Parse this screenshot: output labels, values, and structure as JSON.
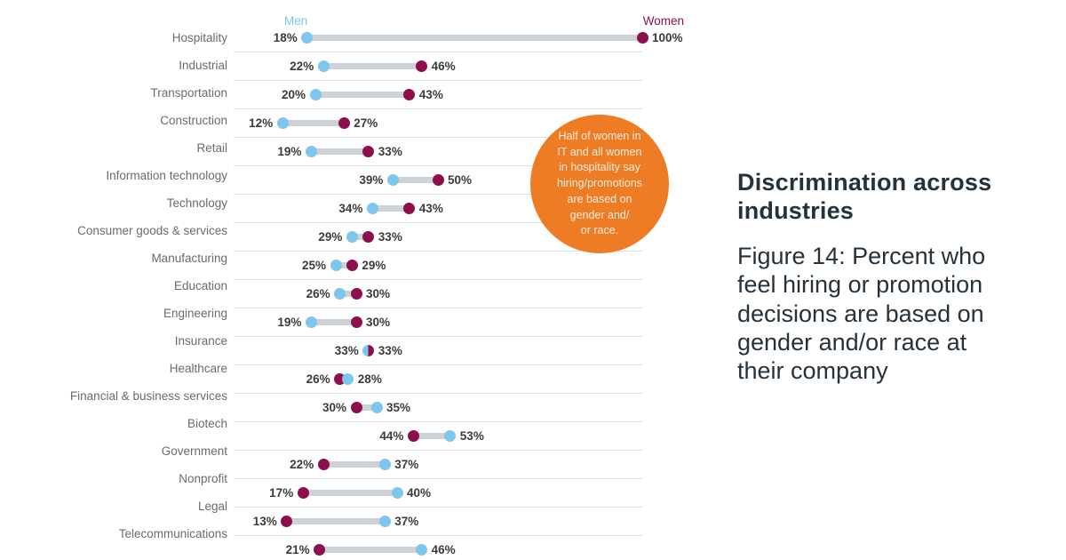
{
  "chart_data": {
    "type": "dumbbell",
    "title": "Discrimination across industries",
    "caption": "Figure 14: Percent who feel hiring or promotion decisions are based on gender and/or race at their company",
    "legend": {
      "men": "Men",
      "women": "Women"
    },
    "axis": {
      "min": 0,
      "max": 100,
      "unit": "%",
      "grid": "row-separators"
    },
    "series_colors": {
      "men": "#7CC7EB",
      "women": "#8E0F4E"
    },
    "bar_color": "#CDD2D6",
    "rows": [
      {
        "industry": "Hospitality",
        "men": 18,
        "women": 100
      },
      {
        "industry": "Industrial",
        "men": 22,
        "women": 46
      },
      {
        "industry": "Transportation",
        "men": 20,
        "women": 43
      },
      {
        "industry": "Construction",
        "men": 12,
        "women": 27
      },
      {
        "industry": "Retail",
        "men": 19,
        "women": 33
      },
      {
        "industry": "Information technology",
        "men": 39,
        "women": 50
      },
      {
        "industry": "Technology",
        "men": 34,
        "women": 43
      },
      {
        "industry": "Consumer goods & services",
        "men": 29,
        "women": 33
      },
      {
        "industry": "Manufacturing",
        "men": 25,
        "women": 29
      },
      {
        "industry": "Education",
        "men": 26,
        "women": 30
      },
      {
        "industry": "Engineering",
        "men": 19,
        "women": 30
      },
      {
        "industry": "Insurance",
        "men": 33,
        "women": 33
      },
      {
        "industry": "Healthcare",
        "men": 28,
        "women": 26
      },
      {
        "industry": "Financial & business services",
        "men": 35,
        "women": 30
      },
      {
        "industry": "Biotech",
        "men": 53,
        "women": 44
      },
      {
        "industry": "Government",
        "men": 37,
        "women": 22
      },
      {
        "industry": "Nonprofit",
        "men": 40,
        "women": 17
      },
      {
        "industry": "Legal",
        "men": 37,
        "women": 13
      },
      {
        "industry": "Telecommunications",
        "men": 46,
        "women": 21
      }
    ],
    "annotation": {
      "text": "Half of women in\nIT and all women\nin hospitality say\nhiring/promotions\nare based on\ngender and/\nor race.",
      "color": "#ED7C25"
    }
  }
}
